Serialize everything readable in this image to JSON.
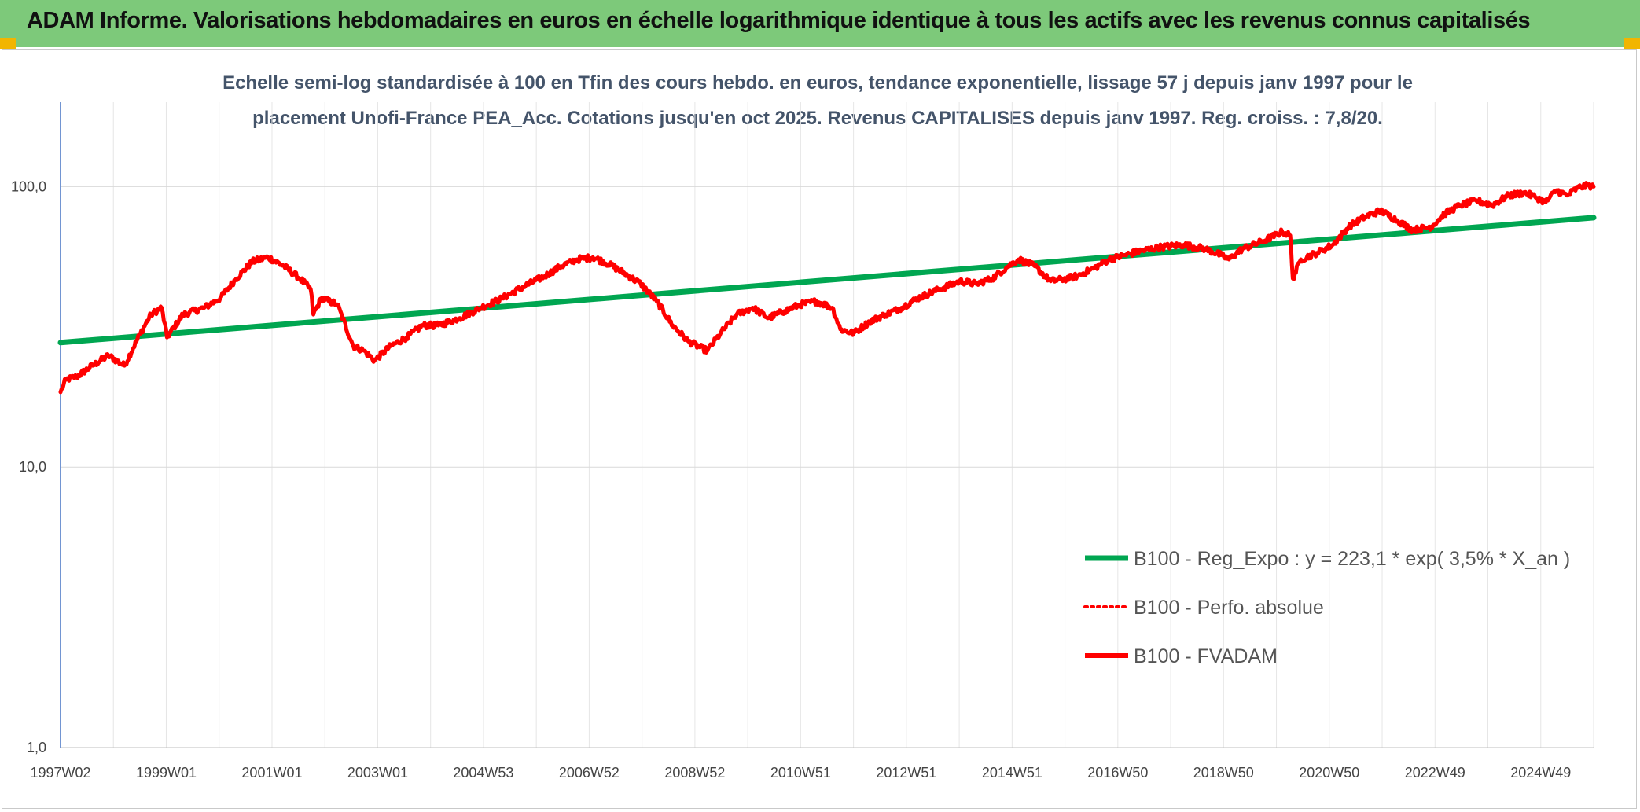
{
  "banner": {
    "title": "ADAM Informe. Valorisations hebdomadaires en euros en échelle logarithmique identique à tous les actifs avec les revenus connus capitalisés",
    "background": "#7dc97a",
    "corner_color": "#f2b500"
  },
  "chart_data": {
    "type": "line",
    "subtitle_line1": "Echelle semi-log standardisée à 100 en Tfin des cours hebdo. en euros, tendance exponentielle, lissage 57 j depuis janv 1997 pour le",
    "subtitle_line2": "placement Unofi-France PEA_Acc. Cotations jusqu'en oct 2025. Revenus CAPITALISES depuis janv 1997. Reg. croiss. : 7,8/20.",
    "y_scale": "log",
    "ylim": [
      1,
      200
    ],
    "y_ticks": [
      "1,0",
      "10,0",
      "100,0"
    ],
    "x_ticks": [
      "1997W02",
      "1999W01",
      "2001W01",
      "2003W01",
      "2004W53",
      "2006W52",
      "2008W52",
      "2010W51",
      "2012W51",
      "2014W51",
      "2016W50",
      "2018W50",
      "2020W50",
      "2022W49",
      "2024W49"
    ],
    "grid": true,
    "legend_position": "bottom-right",
    "series": [
      {
        "name": "B100 - Reg_Expo : y = 223,1 * exp( 3,5% *  X_an )",
        "style": "solid",
        "color": "#00a651",
        "x": [
          1997.0,
          2025.8
        ],
        "y": [
          27.8,
          77.5
        ]
      },
      {
        "name": "B100 - Perfo. absolue",
        "style": "dotted",
        "color": "#ff0000",
        "x": [],
        "y": []
      },
      {
        "name": "B100 - FVADAM",
        "style": "solid",
        "color": "#ff0000",
        "x": [
          1997.0,
          1997.1,
          1997.3,
          1997.6,
          1997.9,
          1998.2,
          1998.5,
          1998.7,
          1998.9,
          1999.0,
          1999.3,
          1999.7,
          2000.0,
          2000.3,
          2000.6,
          2000.9,
          2001.2,
          2001.5,
          2001.7,
          2001.75,
          2001.9,
          2002.2,
          2002.5,
          2002.7,
          2002.9,
          2003.2,
          2003.5,
          2003.8,
          2004.1,
          2004.5,
          2004.9,
          2005.3,
          2005.7,
          2006.1,
          2006.4,
          2006.7,
          2007.0,
          2007.3,
          2007.6,
          2007.9,
          2008.2,
          2008.5,
          2008.8,
          2009.15,
          2009.4,
          2009.7,
          2010.0,
          2010.3,
          2010.6,
          2010.9,
          2011.2,
          2011.5,
          2011.65,
          2011.9,
          2012.2,
          2012.5,
          2012.8,
          2013.1,
          2013.5,
          2013.9,
          2014.2,
          2014.5,
          2014.8,
          2015.0,
          2015.3,
          2015.6,
          2015.9,
          2016.1,
          2016.4,
          2016.7,
          2017.0,
          2017.3,
          2017.7,
          2018.1,
          2018.5,
          2018.8,
          2018.95,
          2019.2,
          2019.6,
          2019.95,
          2020.1,
          2020.15,
          2020.3,
          2020.6,
          2020.9,
          2021.2,
          2021.5,
          2021.8,
          2022.1,
          2022.4,
          2022.75,
          2023.0,
          2023.3,
          2023.6,
          2023.9,
          2024.2,
          2024.5,
          2024.7,
          2024.9,
          2025.1,
          2025.3,
          2025.5,
          2025.7,
          2025.8
        ],
        "y": [
          18.5,
          20.5,
          21.0,
          23.0,
          25.0,
          23.0,
          30.0,
          35.0,
          37.0,
          29.0,
          35.0,
          37.0,
          40.0,
          47.0,
          54.0,
          56.0,
          52.0,
          47.0,
          43.0,
          35.0,
          40.0,
          38.0,
          27.0,
          26.0,
          24.0,
          27.0,
          29.0,
          32.0,
          32.0,
          34.0,
          37.0,
          40.0,
          44.0,
          48.0,
          52.0,
          55.0,
          56.0,
          53.0,
          49.0,
          45.0,
          39.0,
          32.0,
          28.0,
          26.0,
          30.0,
          35.0,
          37.0,
          34.0,
          36.0,
          38.0,
          39.0,
          37.0,
          31.0,
          30.0,
          33.0,
          35.0,
          37.0,
          40.0,
          43.0,
          46.0,
          45.0,
          47.0,
          52.0,
          55.0,
          52.0,
          46.0,
          47.0,
          48.0,
          51.0,
          55.0,
          57.0,
          59.0,
          61.0,
          62.0,
          60.0,
          57.0,
          55.0,
          60.0,
          64.0,
          69.0,
          67.0,
          47.0,
          55.0,
          58.0,
          62.0,
          72.0,
          78.0,
          82.0,
          76.0,
          70.0,
          72.0,
          80.0,
          86.0,
          89.0,
          86.0,
          93.0,
          95.0,
          92.0,
          88.0,
          97.0,
          93.0,
          99.0,
          101.0,
          100.0
        ]
      }
    ]
  }
}
